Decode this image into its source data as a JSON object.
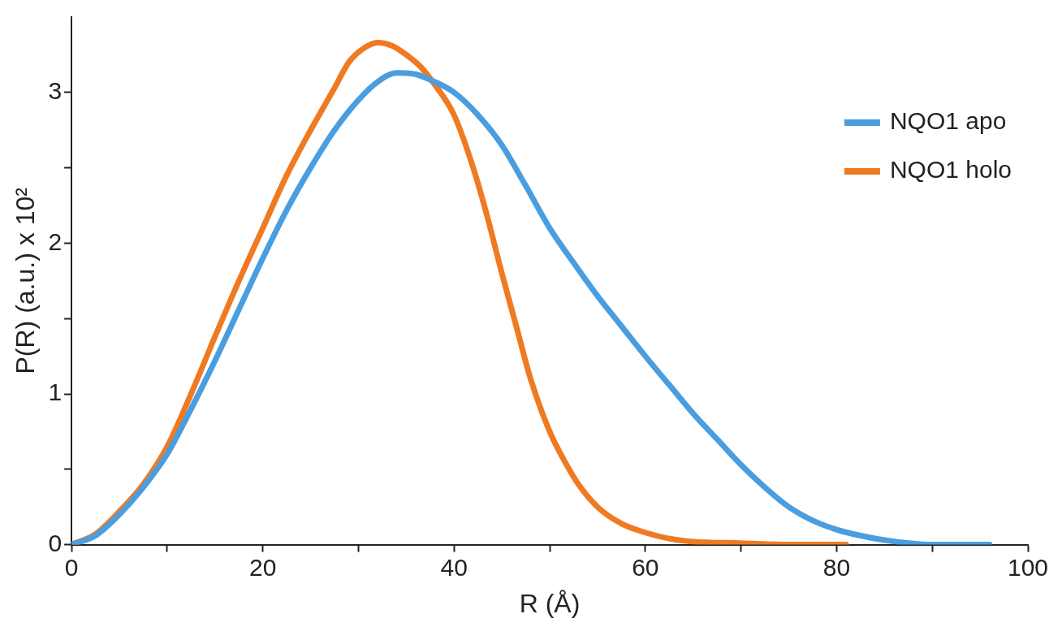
{
  "chart_data": {
    "type": "line",
    "xlabel": "R (Å)",
    "ylabel": "P(R) (a.u.) x 10²",
    "xlim": [
      0,
      100
    ],
    "ylim": [
      0,
      3.5
    ],
    "xticks": [
      0,
      {
        "value": 10,
        "label": null
      },
      20,
      {
        "value": 30,
        "label": null
      },
      40,
      {
        "value": 50,
        "label": null
      },
      60,
      {
        "value": 70,
        "label": null
      },
      80,
      {
        "value": 90,
        "label": null
      },
      100
    ],
    "yticks": [
      0,
      {
        "value": 0.5,
        "label": null
      },
      1,
      {
        "value": 1.5,
        "label": null
      },
      2,
      {
        "value": 2.5,
        "label": null
      },
      3
    ],
    "grid": false,
    "legend": "top right",
    "marker": "none",
    "line_style": "solid",
    "series": [
      {
        "name": "NQO1 apo",
        "color": "#4a9ee0",
        "x": [
          0,
          2.5,
          5,
          7.5,
          10,
          12.5,
          15,
          17.5,
          20,
          22.5,
          25,
          27.5,
          30,
          32,
          34,
          36,
          38,
          40,
          42.5,
          45,
          47.5,
          50,
          52.5,
          55,
          57.5,
          60,
          62.5,
          65,
          67.5,
          70,
          72.5,
          75,
          77.5,
          80,
          82.5,
          85,
          87.5,
          90,
          93,
          96
        ],
        "values": [
          0,
          0.06,
          0.2,
          0.38,
          0.6,
          0.9,
          1.22,
          1.56,
          1.9,
          2.22,
          2.5,
          2.75,
          2.95,
          3.07,
          3.13,
          3.12,
          3.07,
          3.0,
          2.85,
          2.65,
          2.38,
          2.1,
          1.87,
          1.65,
          1.45,
          1.25,
          1.06,
          0.87,
          0.7,
          0.53,
          0.38,
          0.25,
          0.16,
          0.1,
          0.06,
          0.03,
          0.01,
          0,
          0,
          0
        ]
      },
      {
        "name": "NQO1 holo",
        "color": "#ef7a22",
        "x": [
          0,
          2.5,
          5,
          7.5,
          10,
          12.5,
          15,
          17.5,
          20,
          22.5,
          25,
          27.5,
          29,
          30.5,
          32,
          33.5,
          35,
          36.5,
          38,
          40,
          42,
          43.5,
          45,
          46.5,
          48,
          50,
          51.5,
          53,
          55,
          57.5,
          60,
          62.5,
          65,
          70,
          75,
          81
        ],
        "values": [
          0,
          0.07,
          0.22,
          0.4,
          0.65,
          1.0,
          1.38,
          1.75,
          2.1,
          2.45,
          2.75,
          3.03,
          3.2,
          3.29,
          3.33,
          3.31,
          3.25,
          3.17,
          3.05,
          2.85,
          2.5,
          2.17,
          1.8,
          1.45,
          1.1,
          0.75,
          0.56,
          0.4,
          0.25,
          0.14,
          0.08,
          0.04,
          0.02,
          0.01,
          0,
          0
        ]
      }
    ]
  }
}
